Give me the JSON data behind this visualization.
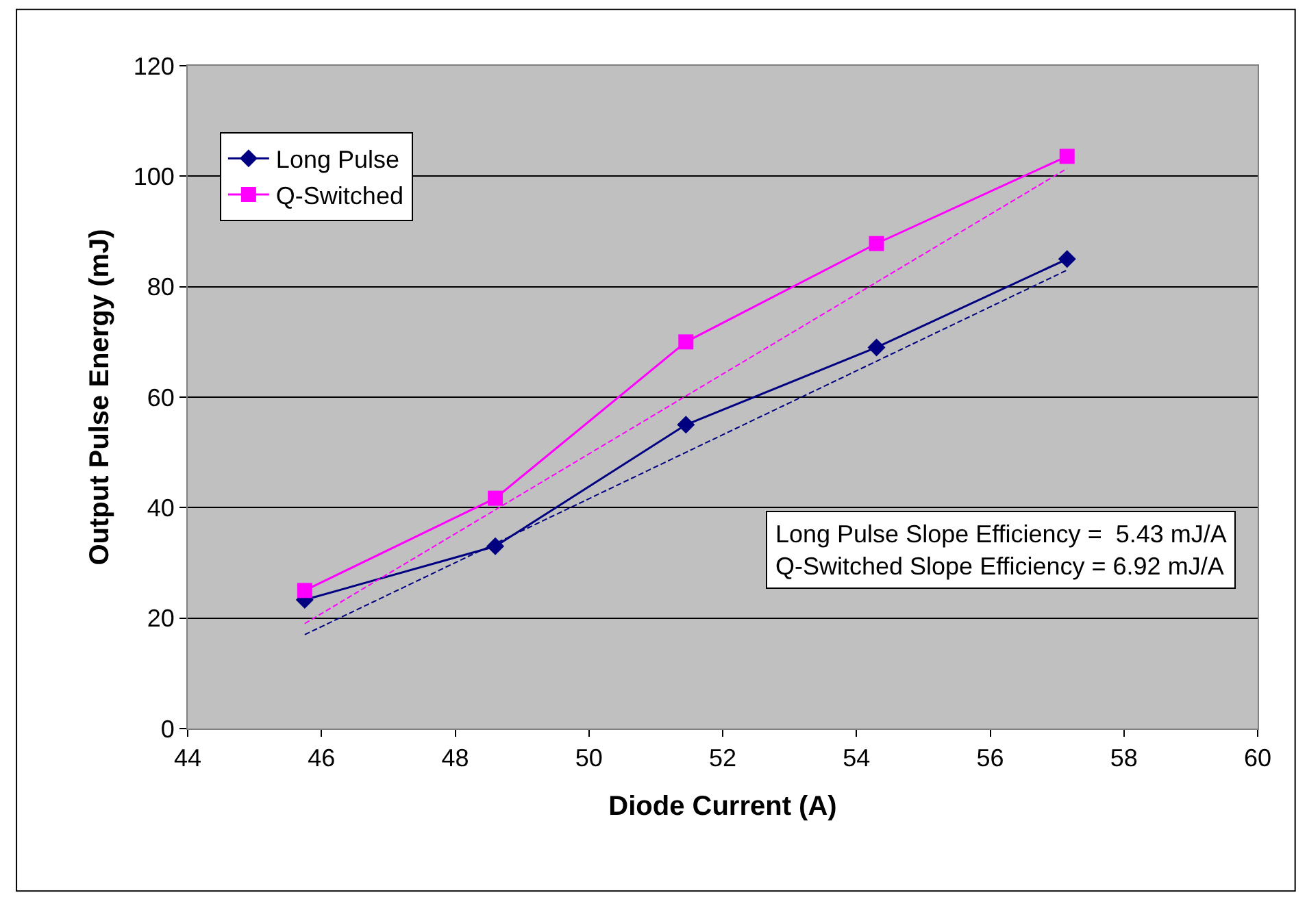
{
  "chart_data": {
    "type": "line",
    "xlabel": "Diode Current (A)",
    "ylabel": "Output Pulse Energy (mJ)",
    "x": [
      45.75,
      48.6,
      51.45,
      54.3,
      57.15
    ],
    "series": [
      {
        "name": "Long Pulse",
        "color": "#000080",
        "marker": "diamond",
        "line_style": "solid",
        "values": [
          23.3,
          33,
          55,
          69,
          85
        ]
      },
      {
        "name": "Q-Switched",
        "color": "#ff00ff",
        "marker": "square",
        "line_style": "solid",
        "values": [
          25,
          41.7,
          70,
          87.8,
          103.6
        ]
      },
      {
        "color": "#000080",
        "marker": "none",
        "line_style": "dashed",
        "values": [
          17,
          33.5,
          50,
          66.5,
          83
        ]
      },
      {
        "color": "#ff00ff",
        "marker": "none",
        "line_style": "dashed",
        "values": [
          19,
          39.6,
          60.2,
          80.8,
          101.4
        ]
      }
    ],
    "xlim": [
      44,
      60
    ],
    "xticks": [
      44,
      46,
      48,
      50,
      52,
      54,
      56,
      58,
      60
    ],
    "ylim": [
      0,
      120
    ],
    "yticks": [
      0,
      20,
      40,
      60,
      80,
      100,
      120
    ],
    "grid": "y",
    "legend": "top left",
    "annotations": [
      "Long Pulse Slope Efficiency =  5.43 mJ/A",
      "Q-Switched Slope Efficiency = 6.92 mJ/A"
    ]
  }
}
